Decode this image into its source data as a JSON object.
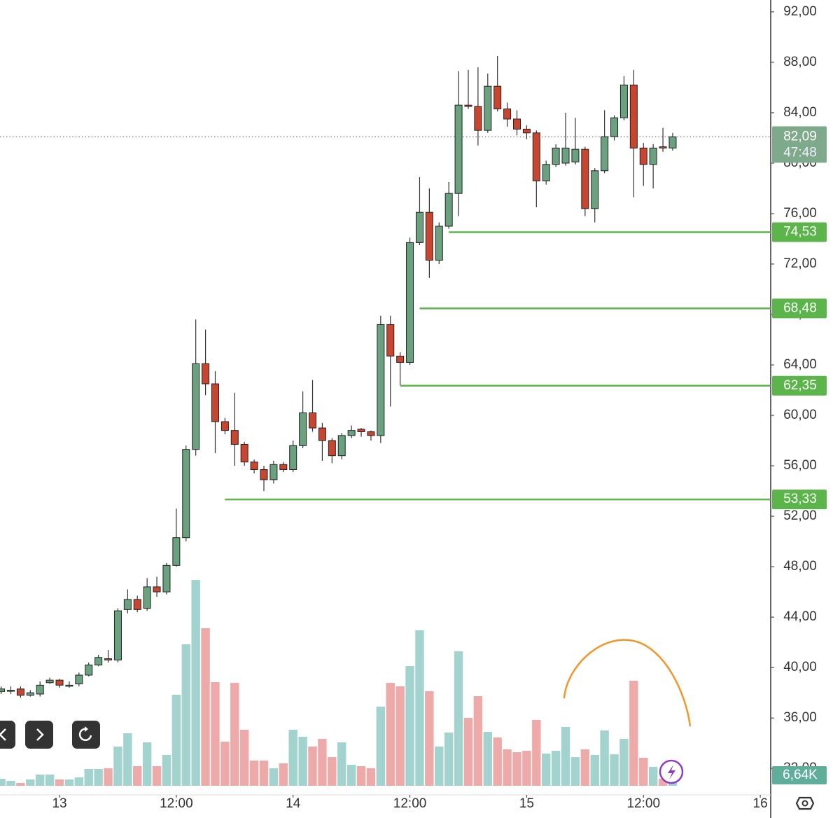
{
  "chart_data": {
    "type": "candlestick",
    "x": [
      -6,
      -5,
      -4,
      -3,
      -2,
      -1,
      0,
      1,
      2,
      3,
      4,
      5,
      6,
      7,
      8,
      9,
      10,
      11,
      12,
      13,
      14,
      15,
      16,
      17,
      18,
      19,
      20,
      21,
      22,
      23,
      24,
      25,
      26,
      27,
      28,
      29,
      30,
      31,
      32,
      33,
      34,
      35,
      36,
      37,
      38,
      39,
      40,
      41,
      42,
      43,
      44,
      45,
      46,
      47,
      48,
      49,
      50,
      51,
      52,
      53,
      54,
      55,
      56,
      57,
      58,
      59,
      60,
      61,
      62,
      63
    ],
    "open": [
      38.1,
      38.2,
      38.3,
      37.8,
      37.9,
      38.8,
      39.0,
      38.6,
      38.7,
      39.4,
      40.2,
      40.7,
      40.6,
      44.6,
      45.4,
      44.7,
      46.4,
      46.0,
      48.1,
      50.3,
      57.3,
      64.1,
      62.5,
      59.5,
      58.8,
      57.7,
      56.3,
      55.7,
      54.9,
      56.1,
      55.7,
      57.6,
      60.2,
      59.0,
      58.0,
      56.8,
      58.4,
      58.9,
      58.7,
      58.4,
      67.2,
      64.7,
      64.2,
      73.7,
      76.1,
      72.3,
      75.0,
      77.6,
      84.6,
      84.5,
      82.6,
      86.1,
      84.3,
      83.5,
      82.7,
      82.4,
      78.6,
      79.9,
      80.0,
      80.1,
      81.1,
      76.4,
      79.4,
      82.1,
      83.6,
      86.2,
      81.2,
      79.9,
      81.3,
      81.2
    ],
    "high": [
      38.5,
      38.5,
      38.5,
      38.2,
      38.9,
      39.2,
      39.1,
      38.9,
      39.6,
      40.4,
      41.0,
      41.4,
      44.7,
      46.2,
      45.7,
      47.1,
      47.2,
      48.3,
      52.6,
      57.6,
      67.6,
      66.8,
      63.5,
      59.8,
      61.8,
      57.9,
      56.5,
      56.0,
      56.4,
      56.3,
      58.0,
      61.9,
      62.8,
      59.4,
      58.2,
      58.6,
      59.2,
      59.0,
      58.8,
      67.9,
      67.9,
      65.0,
      74.1,
      78.9,
      78.0,
      75.3,
      78.5,
      87.3,
      87.4,
      87.6,
      87.1,
      88.5,
      84.8,
      84.2,
      83.0,
      82.6,
      80.2,
      81.5,
      84.0,
      83.6,
      81.3,
      79.6,
      84.2,
      83.8,
      86.9,
      87.4,
      81.6,
      81.5,
      82.8,
      82.4
    ],
    "low": [
      37.9,
      37.9,
      37.6,
      37.7,
      37.7,
      38.7,
      38.4,
      38.4,
      38.5,
      39.3,
      40.1,
      40.4,
      40.4,
      44.3,
      44.4,
      44.5,
      45.6,
      45.8,
      48.0,
      50.0,
      56.8,
      61.6,
      57.0,
      58.5,
      56.0,
      56.0,
      55.4,
      54.0,
      54.6,
      55.5,
      55.5,
      57.4,
      58.7,
      56.4,
      56.2,
      56.5,
      58.2,
      58.3,
      58.0,
      57.8,
      60.7,
      62.4,
      64.0,
      73.5,
      70.9,
      72.0,
      74.8,
      75.8,
      84.3,
      81.4,
      82.4,
      84.1,
      82.9,
      82.2,
      81.9,
      76.5,
      78.3,
      79.7,
      79.8,
      79.9,
      75.8,
      75.3,
      79.2,
      81.8,
      83.4,
      77.3,
      78.2,
      78.0,
      80.9,
      81.0
    ],
    "close": [
      38.3,
      38.2,
      37.8,
      38.0,
      38.6,
      39.0,
      38.6,
      38.6,
      39.4,
      40.2,
      40.8,
      40.6,
      44.5,
      45.4,
      44.6,
      46.4,
      46.0,
      48.1,
      50.3,
      57.3,
      64.1,
      62.5,
      59.5,
      58.8,
      57.7,
      56.3,
      55.7,
      54.9,
      56.1,
      55.7,
      57.6,
      60.2,
      59.0,
      58.0,
      56.8,
      58.4,
      58.8,
      58.7,
      58.4,
      67.2,
      64.7,
      64.2,
      73.7,
      76.1,
      72.3,
      75.0,
      77.6,
      84.6,
      84.5,
      82.6,
      86.1,
      84.3,
      83.5,
      82.7,
      82.4,
      78.6,
      79.9,
      81.2,
      81.2,
      81.1,
      76.4,
      79.4,
      82.1,
      83.6,
      86.2,
      81.2,
      79.9,
      81.2,
      81.2,
      82.09
    ],
    "volume": [
      4430,
      3100,
      1770,
      3990,
      7090,
      7090,
      3990,
      3990,
      5320,
      10630,
      10630,
      11080,
      24810,
      33230,
      12400,
      27470,
      12400,
      19490,
      57590,
      89490,
      130240,
      99680,
      65560,
      27910,
      65120,
      35440,
      15950,
      15950,
      11080,
      14180,
      35440,
      31010,
      24810,
      29680,
      18160,
      27470,
      13290,
      12400,
      11080,
      50060,
      65120,
      62910,
      75750,
      98350,
      59810,
      24810,
      33670,
      85060,
      42970,
      56700,
      34110,
      30570,
      23040,
      21260,
      22150,
      41640,
      20380,
      22150,
      37210,
      18160,
      23040,
      19490,
      35000,
      19940,
      29680,
      66450,
      17720,
      11960,
      4430,
      6640
    ],
    "volume_lim": [
      0,
      497000
    ],
    "up_color": "#6aa17f",
    "down_color": "#c9452f",
    "volume_up_color": "#a3d3cf",
    "volume_down_color": "#eeaaa8",
    "xlim": [
      -6.115,
      73.0
    ],
    "xticks": [
      {
        "value": 0,
        "label": "13"
      },
      {
        "value": 12,
        "label": "12:00"
      },
      {
        "value": 24,
        "label": "14"
      },
      {
        "value": 36,
        "label": "12:00"
      },
      {
        "value": 48,
        "label": "15"
      },
      {
        "value": 60,
        "label": "12:00"
      },
      {
        "value": 72,
        "label": "16"
      }
    ],
    "ylim": [
      29.9,
      92.94
    ],
    "yticks": [
      {
        "value": 32,
        "label": "32,00"
      },
      {
        "value": 36,
        "label": "36,00"
      },
      {
        "value": 40,
        "label": "40,00"
      },
      {
        "value": 44,
        "label": "44,00"
      },
      {
        "value": 48,
        "label": "48,00"
      },
      {
        "value": 52,
        "label": "52,00"
      },
      {
        "value": 56,
        "label": "56,00"
      },
      {
        "value": 60,
        "label": "60,00"
      },
      {
        "value": 64,
        "label": "64,00"
      },
      {
        "value": 68,
        "label": "68,00"
      },
      {
        "value": 72,
        "label": "72,00"
      },
      {
        "value": 76,
        "label": "76,00"
      },
      {
        "value": 80,
        "label": "80,00"
      },
      {
        "value": 84,
        "label": "84,00"
      },
      {
        "value": 88,
        "label": "88,00"
      },
      {
        "value": 92,
        "label": "92,00"
      }
    ],
    "levels": [
      {
        "value": 74.53,
        "label": "74,53",
        "from": 40
      },
      {
        "value": 68.48,
        "label": "68,48",
        "from": 37
      },
      {
        "value": 62.35,
        "label": "62,35",
        "from": 35
      },
      {
        "value": 53.33,
        "label": "53,33",
        "from": 17
      }
    ],
    "level_color": "#5cb54a",
    "price_label": "82,09",
    "countdown": "47:48",
    "volume_label": "6,64K"
  }
}
